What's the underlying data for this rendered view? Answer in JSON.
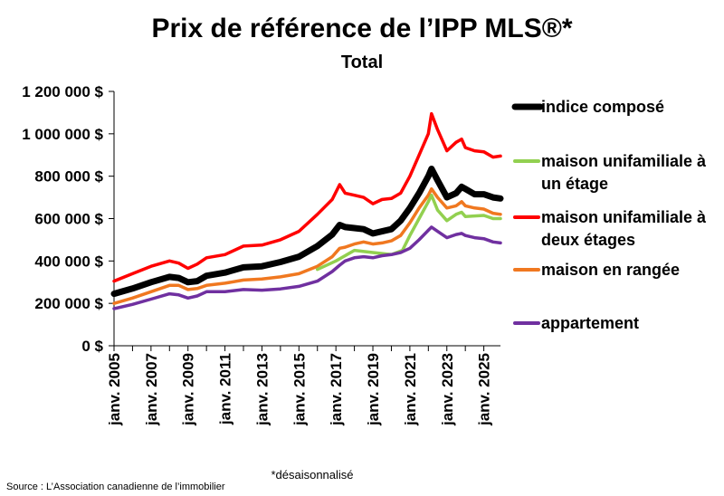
{
  "chart_data": {
    "type": "line",
    "title": "Prix de référence de l’IPP MLS®*",
    "subtitle": "Total",
    "note": "*désaisonnalisé",
    "source": "Source : L’Association canadienne de l’immobilier",
    "xlabel": "",
    "ylabel": "",
    "xlim": [
      2005,
      2025.9
    ],
    "ylim": [
      0,
      1200000
    ],
    "yticks": [
      0,
      200000,
      400000,
      600000,
      800000,
      1000000,
      1200000
    ],
    "ytick_labels": [
      "0 $",
      "200 000 $",
      "400 000 $",
      "600 000 $",
      "800 000 $",
      "1 000 000 $",
      "1 200 000 $"
    ],
    "xticks": [
      2005,
      2007,
      2009,
      2011,
      2013,
      2015,
      2017,
      2019,
      2021,
      2023,
      2025
    ],
    "xtick_labels": [
      "janv. 2005",
      "janv. 2007",
      "janv. 2009",
      "janv. 2011",
      "janv. 2013",
      "janv. 2015",
      "janv. 2017",
      "janv. 2019",
      "janv. 2021",
      "janv. 2023",
      "janv. 2025"
    ],
    "grid": false,
    "legend_position": "right",
    "series": [
      {
        "name": "indice composé",
        "color": "#000000",
        "x": [
          2005,
          2006,
          2007,
          2008,
          2008.5,
          2009,
          2009.5,
          2010,
          2011,
          2012,
          2013,
          2014,
          2015,
          2016,
          2016.8,
          2017.2,
          2017.5,
          2018,
          2018.5,
          2019,
          2019.5,
          2020,
          2020.5,
          2021,
          2021.5,
          2022,
          2022.17,
          2022.5,
          2023,
          2023.5,
          2023.8,
          2024,
          2024.5,
          2025,
          2025.5,
          2025.9
        ],
        "y": [
          245000,
          270000,
          300000,
          325000,
          320000,
          300000,
          305000,
          330000,
          345000,
          370000,
          375000,
          395000,
          420000,
          470000,
          525000,
          570000,
          560000,
          555000,
          550000,
          530000,
          540000,
          550000,
          590000,
          650000,
          720000,
          800000,
          835000,
          780000,
          700000,
          720000,
          750000,
          740000,
          715000,
          715000,
          700000,
          695000
        ]
      },
      {
        "name": "maison unifamiliale à un étage",
        "label_lines": [
          "maison unifamiliale à",
          "un étage"
        ],
        "color": "#92D050",
        "x": [
          2016,
          2017,
          2018,
          2019,
          2020,
          2020.6,
          2021,
          2021.5,
          2022,
          2022.17,
          2022.5,
          2023,
          2023.5,
          2023.8,
          2024,
          2025,
          2025.5,
          2025.9
        ],
        "y": [
          360000,
          400000,
          450000,
          440000,
          430000,
          450000,
          520000,
          600000,
          680000,
          710000,
          640000,
          590000,
          620000,
          630000,
          610000,
          615000,
          600000,
          600000
        ]
      },
      {
        "name": "maison unifamiliale à deux étages",
        "label_lines": [
          "maison unifamiliale à",
          "deux étages"
        ],
        "color": "#FF0000",
        "x": [
          2005,
          2006,
          2007,
          2008,
          2008.5,
          2009,
          2009.5,
          2010,
          2011,
          2012,
          2013,
          2014,
          2015,
          2016,
          2016.8,
          2017.2,
          2017.5,
          2018,
          2018.5,
          2019,
          2019.5,
          2020,
          2020.5,
          2021,
          2021.5,
          2022,
          2022.17,
          2022.5,
          2023,
          2023.5,
          2023.8,
          2024,
          2024.5,
          2025,
          2025.5,
          2025.9
        ],
        "y": [
          305000,
          340000,
          375000,
          400000,
          390000,
          365000,
          385000,
          415000,
          430000,
          470000,
          475000,
          500000,
          540000,
          620000,
          690000,
          760000,
          720000,
          710000,
          700000,
          670000,
          690000,
          695000,
          720000,
          800000,
          900000,
          1000000,
          1095000,
          1020000,
          920000,
          960000,
          975000,
          935000,
          920000,
          915000,
          890000,
          895000
        ]
      },
      {
        "name": "maison en rangée",
        "color": "#F07820",
        "x": [
          2005,
          2006,
          2007,
          2008,
          2008.5,
          2009,
          2009.5,
          2010,
          2011,
          2012,
          2013,
          2014,
          2015,
          2016,
          2016.8,
          2017.2,
          2017.5,
          2018,
          2018.5,
          2019,
          2019.5,
          2020,
          2020.5,
          2021,
          2021.5,
          2022,
          2022.17,
          2022.5,
          2023,
          2023.5,
          2023.8,
          2024,
          2024.5,
          2025,
          2025.5,
          2025.9
        ],
        "y": [
          200000,
          225000,
          255000,
          285000,
          285000,
          265000,
          270000,
          285000,
          295000,
          310000,
          315000,
          325000,
          340000,
          375000,
          420000,
          460000,
          465000,
          480000,
          490000,
          480000,
          485000,
          495000,
          520000,
          580000,
          650000,
          710000,
          740000,
          700000,
          650000,
          660000,
          680000,
          660000,
          650000,
          645000,
          625000,
          620000
        ]
      },
      {
        "name": "appartement",
        "color": "#7030A0",
        "x": [
          2005,
          2006,
          2007,
          2008,
          2008.5,
          2009,
          2009.5,
          2010,
          2011,
          2012,
          2013,
          2014,
          2015,
          2016,
          2016.8,
          2017.2,
          2017.5,
          2018,
          2018.5,
          2019,
          2019.5,
          2020,
          2020.5,
          2021,
          2021.5,
          2022,
          2022.17,
          2022.5,
          2023,
          2023.5,
          2023.8,
          2024,
          2024.5,
          2025,
          2025.5,
          2025.9
        ],
        "y": [
          175000,
          195000,
          220000,
          245000,
          240000,
          225000,
          235000,
          255000,
          255000,
          265000,
          262000,
          268000,
          280000,
          305000,
          350000,
          380000,
          400000,
          415000,
          420000,
          415000,
          425000,
          430000,
          440000,
          460000,
          500000,
          545000,
          560000,
          540000,
          510000,
          525000,
          530000,
          520000,
          510000,
          505000,
          490000,
          485000
        ]
      }
    ]
  }
}
